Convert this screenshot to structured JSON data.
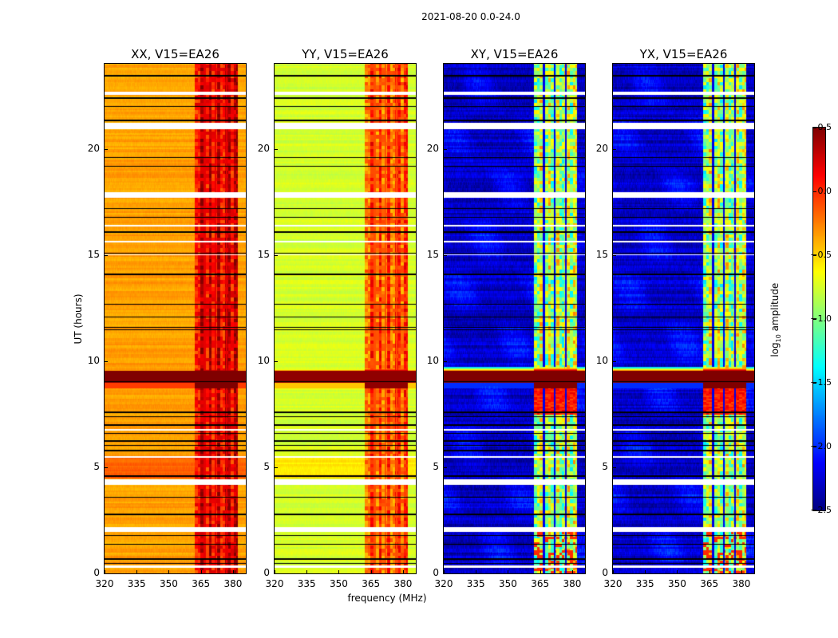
{
  "chart_data": {
    "type": "heatmap",
    "title": "2021-08-20 0.0-24.0",
    "xlabel": "frequency (MHz)",
    "ylabel": "UT (hours)",
    "xlim": [
      320,
      386
    ],
    "ylim": [
      0,
      24
    ],
    "xticks": [
      320,
      335,
      350,
      365,
      380
    ],
    "yticks": [
      0,
      5,
      10,
      15,
      20
    ],
    "colormap": "jet",
    "colorbar": {
      "label_main": "log",
      "label_sub": "10",
      "label_rest": " amplitude",
      "range": [
        -2.5,
        0.5
      ],
      "ticks": [
        "0.5",
        "0.0",
        "−0.5",
        "−1.0",
        "−1.5",
        "−2.0",
        "−2.5"
      ]
    },
    "flagged_white_hours": [
      [
        22.55,
        22.7
      ],
      [
        20.95,
        21.25
      ],
      [
        17.7,
        17.98
      ],
      [
        16.35,
        16.45
      ],
      [
        15.6,
        15.68
      ],
      [
        5.45,
        5.55
      ],
      [
        4.2,
        4.45
      ],
      [
        1.98,
        2.18
      ],
      [
        0.3,
        0.38
      ],
      [
        6.75,
        6.82
      ],
      [
        15.0,
        15.05
      ]
    ],
    "black_line_hours": [
      23.45,
      22.4,
      22.0,
      21.35,
      19.6,
      19.2,
      17.2,
      16.8,
      16.1,
      15.1,
      14.1,
      12.7,
      12.1,
      11.6,
      11.5,
      9.05,
      7.6,
      7.4,
      7.0,
      6.6,
      6.25,
      6.05,
      5.8,
      4.6,
      3.6,
      2.8,
      1.8,
      1.4,
      0.7,
      0.5
    ],
    "rfi_event_hours": [
      9.0,
      9.55
    ],
    "signal_band_mhz": [
      362,
      382
    ],
    "band_separators_mhz": [
      366.6,
      371.8,
      377.0
    ],
    "panels": [
      {
        "title": "XX, V15=EA26",
        "base": -0.35,
        "band": 0.0,
        "hot": 0.5
      },
      {
        "title": "YY, V15=EA26",
        "base": -0.75,
        "band": -0.3,
        "hot": 0.45
      },
      {
        "title": "XY, V15=EA26",
        "base": -2.3,
        "band": -1.1,
        "hot": 0.5
      },
      {
        "title": "YX, V15=EA26",
        "base": -2.3,
        "band": -1.1,
        "hot": 0.5
      }
    ]
  }
}
